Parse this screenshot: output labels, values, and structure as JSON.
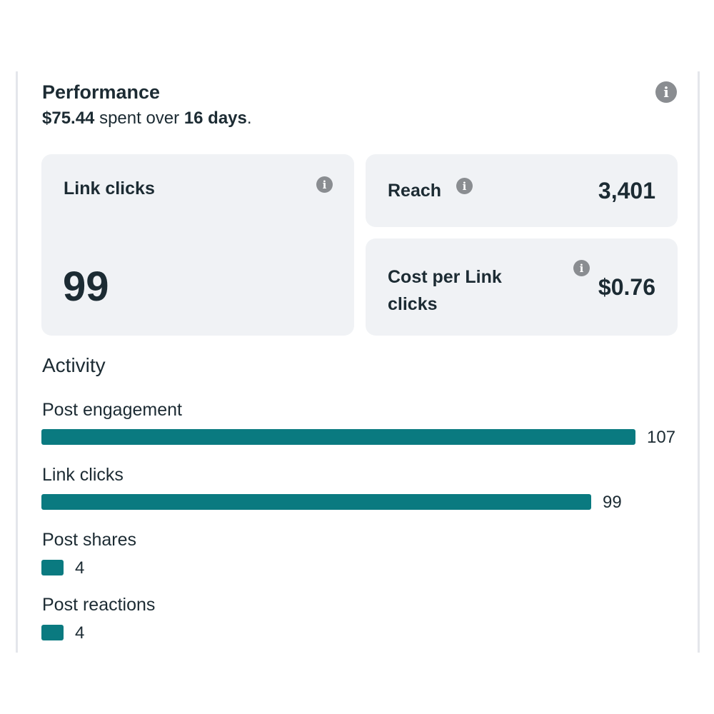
{
  "performance": {
    "title": "Performance",
    "spent_amount": "$75.44",
    "spent_middle": " spent over ",
    "spent_days": "16 days",
    "spent_end": "."
  },
  "cards": {
    "link_clicks": {
      "label": "Link clicks",
      "value": "99"
    },
    "reach": {
      "label": "Reach",
      "value": "3,401"
    },
    "cost_per_link_click": {
      "label_line1": "Cost per Link",
      "label_line2": "clicks",
      "value": "$0.76"
    }
  },
  "activity": {
    "title": "Activity",
    "max_value": 107,
    "metrics": [
      {
        "label": "Post engagement",
        "value": 107
      },
      {
        "label": "Link clicks",
        "value": 99
      },
      {
        "label": "Post shares",
        "value": 4
      },
      {
        "label": "Post reactions",
        "value": 4
      }
    ]
  },
  "colors": {
    "bar": "#0a7a80",
    "card_bg": "#f0f2f5",
    "info_icon": "#8a8d91",
    "text": "#1c2b33"
  },
  "icons": {
    "info": "i"
  }
}
